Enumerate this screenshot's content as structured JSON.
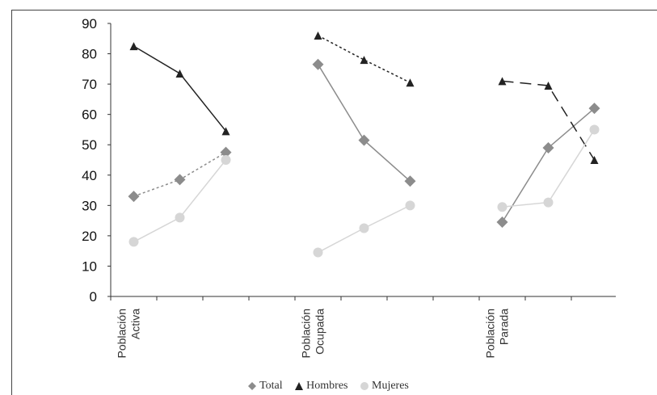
{
  "chart_data": {
    "type": "line",
    "categories": [
      [
        "Población",
        "Activa"
      ],
      [
        "Población",
        "Ocupada"
      ],
      [
        "Población",
        "Parada"
      ]
    ],
    "ylim": [
      0,
      90
    ],
    "yticks": [
      0,
      10,
      20,
      30,
      40,
      50,
      60,
      70,
      80,
      90
    ],
    "grid": false,
    "legend_position": "bottom",
    "series": [
      {
        "name": "Total",
        "marker": "diamond",
        "color": "#8c8c8c",
        "groups": [
          [
            33,
            38.5,
            47.5
          ],
          [
            76.5,
            51.5,
            38
          ],
          [
            24.5,
            49,
            62
          ]
        ],
        "dashed_groups": [
          true,
          false,
          false
        ]
      },
      {
        "name": "Hombres",
        "marker": "triangle",
        "color": "#222222",
        "groups": [
          [
            82.5,
            73.5,
            54.5
          ],
          [
            86,
            78,
            70.5
          ],
          [
            71,
            69.5,
            45
          ]
        ],
        "dashed_groups": [
          false,
          true,
          true
        ]
      },
      {
        "name": "Mujeres",
        "marker": "circle",
        "color": "#d6d6d6",
        "groups": [
          [
            18,
            26,
            45
          ],
          [
            14.5,
            22.5,
            30
          ],
          [
            29.5,
            31,
            55
          ]
        ],
        "dashed_groups": [
          false,
          false,
          false
        ]
      }
    ]
  }
}
